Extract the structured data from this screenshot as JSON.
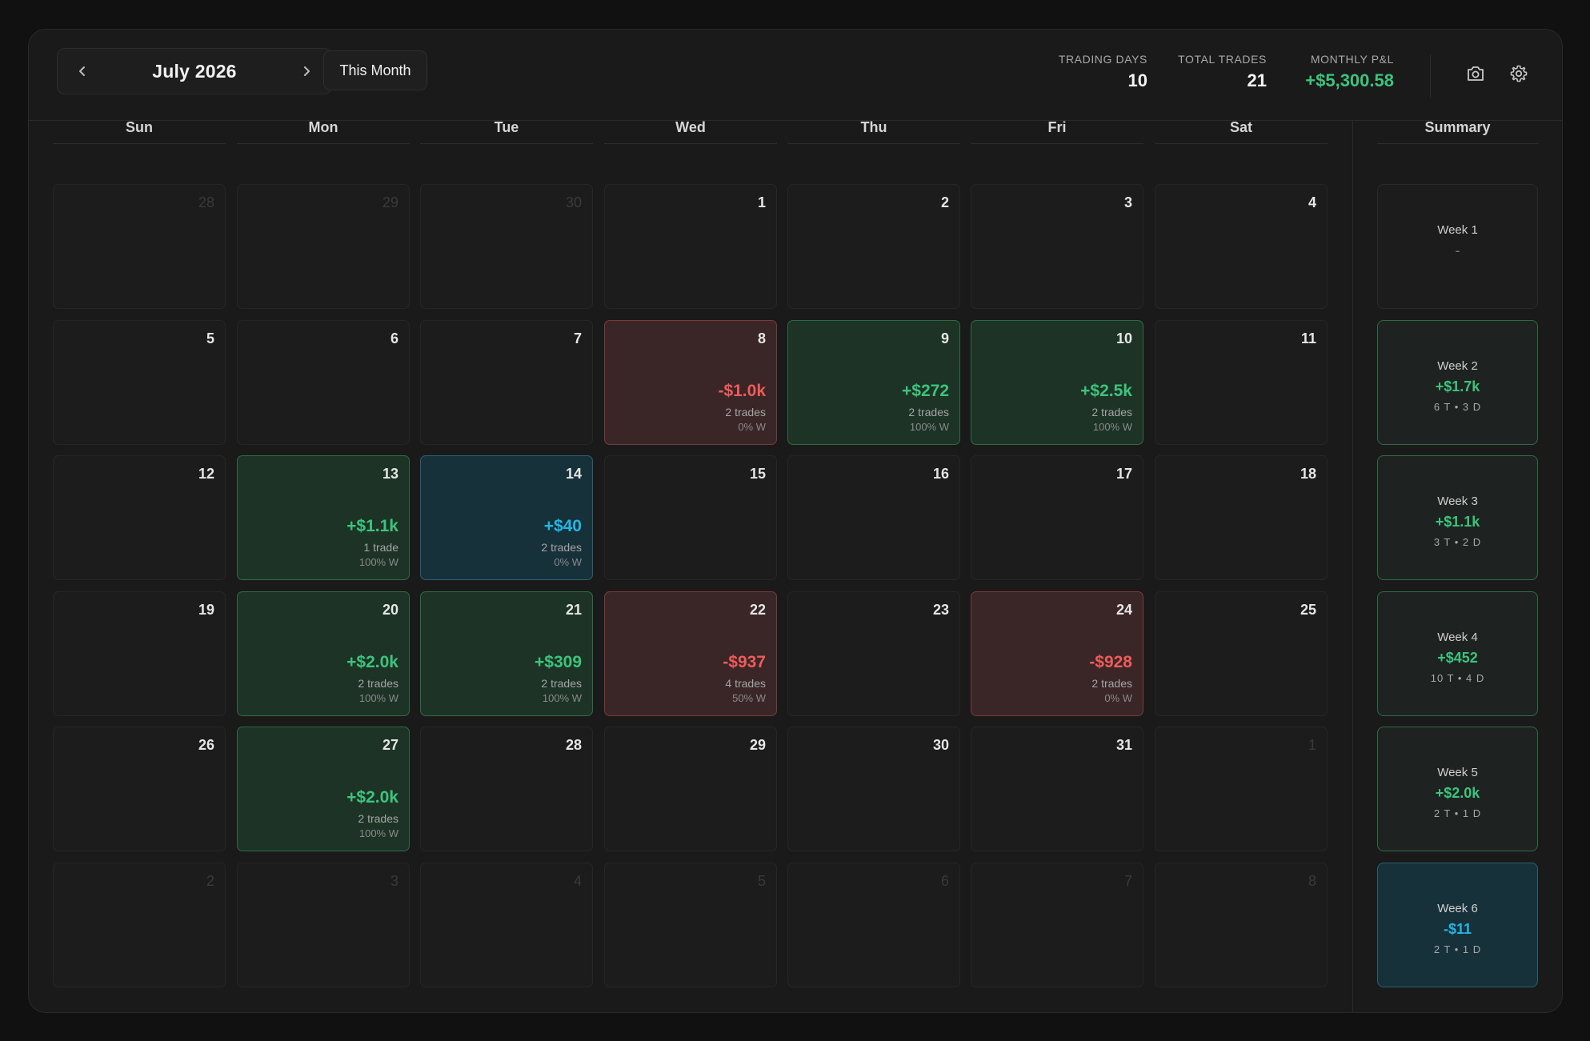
{
  "header": {
    "month_label": "July 2026",
    "this_month_label": "This Month",
    "stats": {
      "trading_days_label": "TRADING DAYS",
      "trading_days_value": "10",
      "total_trades_label": "TOTAL TRADES",
      "total_trades_value": "21",
      "monthly_pnl_label": "MONTHLY P&L",
      "monthly_pnl_value": "+$5,300.58"
    },
    "icons": [
      "chevron-left-icon",
      "chevron-right-icon",
      "camera-icon",
      "gear-icon"
    ]
  },
  "colors": {
    "profit": "#3cc47c",
    "loss": "#ee5b5b",
    "neutral_small": "#22b6e6",
    "panel_bg": "#1a1a1a"
  },
  "weekdays": [
    "Sun",
    "Mon",
    "Tue",
    "Wed",
    "Thu",
    "Fri",
    "Sat"
  ],
  "summary_label": "Summary",
  "days": [
    [
      {
        "day": "28",
        "outside": true
      },
      {
        "day": "29",
        "outside": true
      },
      {
        "day": "30",
        "outside": true
      },
      {
        "day": "1"
      },
      {
        "day": "2"
      },
      {
        "day": "3"
      },
      {
        "day": "4"
      }
    ],
    [
      {
        "day": "5"
      },
      {
        "day": "6"
      },
      {
        "day": "7"
      },
      {
        "day": "8",
        "status": "red",
        "pnl": "-$1.0k",
        "trades": "2 trades",
        "win": "0% W"
      },
      {
        "day": "9",
        "status": "green",
        "pnl": "+$272",
        "trades": "2 trades",
        "win": "100% W"
      },
      {
        "day": "10",
        "status": "green",
        "pnl": "+$2.5k",
        "trades": "2 trades",
        "win": "100% W"
      },
      {
        "day": "11"
      }
    ],
    [
      {
        "day": "12"
      },
      {
        "day": "13",
        "status": "green",
        "pnl": "+$1.1k",
        "trades": "1 trade",
        "win": "100% W"
      },
      {
        "day": "14",
        "status": "blue",
        "pnl": "+$40",
        "trades": "2 trades",
        "win": "0% W"
      },
      {
        "day": "15"
      },
      {
        "day": "16"
      },
      {
        "day": "17"
      },
      {
        "day": "18"
      }
    ],
    [
      {
        "day": "19"
      },
      {
        "day": "20",
        "status": "green",
        "pnl": "+$2.0k",
        "trades": "2 trades",
        "win": "100% W"
      },
      {
        "day": "21",
        "status": "green",
        "pnl": "+$309",
        "trades": "2 trades",
        "win": "100% W"
      },
      {
        "day": "22",
        "status": "red",
        "pnl": "-$937",
        "trades": "4 trades",
        "win": "50% W"
      },
      {
        "day": "23"
      },
      {
        "day": "24",
        "status": "red",
        "pnl": "-$928",
        "trades": "2 trades",
        "win": "0% W"
      },
      {
        "day": "25"
      }
    ],
    [
      {
        "day": "26"
      },
      {
        "day": "27",
        "status": "green",
        "pnl": "+$2.0k",
        "trades": "2 trades",
        "win": "100% W"
      },
      {
        "day": "28"
      },
      {
        "day": "29"
      },
      {
        "day": "30"
      },
      {
        "day": "31"
      },
      {
        "day": "1",
        "outside": true
      }
    ],
    [
      {
        "day": "2",
        "outside": true
      },
      {
        "day": "3",
        "outside": true
      },
      {
        "day": "4",
        "outside": true
      },
      {
        "day": "5",
        "outside": true
      },
      {
        "day": "6",
        "outside": true
      },
      {
        "day": "7",
        "outside": true
      },
      {
        "day": "8",
        "outside": true
      }
    ]
  ],
  "weeks": [
    {
      "label": "Week 1",
      "pnl": "-",
      "meta": "",
      "status": "empty"
    },
    {
      "label": "Week 2",
      "pnl": "+$1.7k",
      "meta": "6 T • 3 D",
      "status": "green"
    },
    {
      "label": "Week 3",
      "pnl": "+$1.1k",
      "meta": "3 T • 2 D",
      "status": "green"
    },
    {
      "label": "Week 4",
      "pnl": "+$452",
      "meta": "10 T • 4 D",
      "status": "green"
    },
    {
      "label": "Week 5",
      "pnl": "+$2.0k",
      "meta": "2 T • 1 D",
      "status": "green"
    },
    {
      "label": "Week 6",
      "pnl": "-$11",
      "meta": "2 T • 1 D",
      "status": "blue"
    }
  ]
}
